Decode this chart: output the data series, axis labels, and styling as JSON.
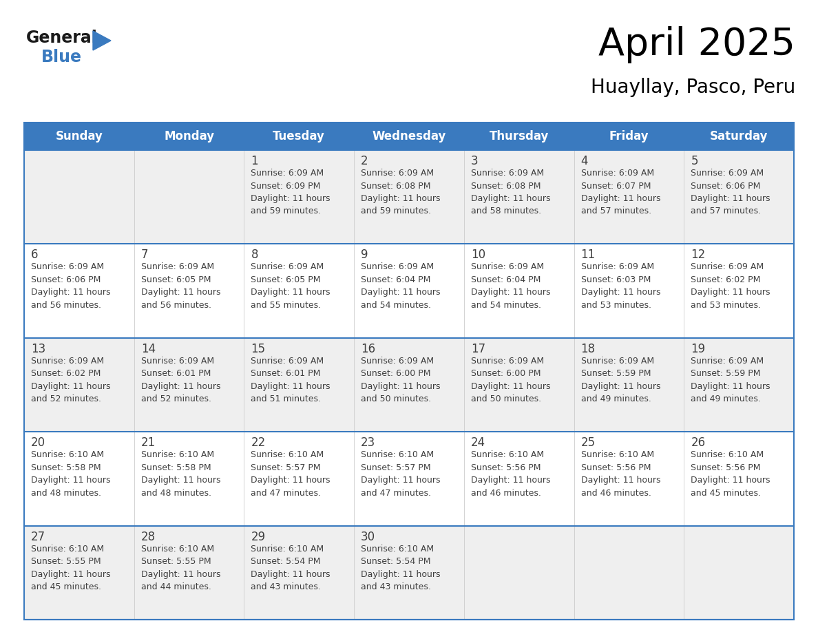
{
  "title": "April 2025",
  "subtitle": "Huayllay, Pasco, Peru",
  "header_bg": "#3a7abf",
  "header_text_color": "#ffffff",
  "cell_bg_odd": "#efefef",
  "cell_bg_even": "#ffffff",
  "border_color": "#3a7abf",
  "text_color": "#404040",
  "day_headers": [
    "Sunday",
    "Monday",
    "Tuesday",
    "Wednesday",
    "Thursday",
    "Friday",
    "Saturday"
  ],
  "weeks": [
    [
      {
        "day": "",
        "sunrise": "",
        "sunset": "",
        "daylight_1": "",
        "daylight_2": ""
      },
      {
        "day": "",
        "sunrise": "",
        "sunset": "",
        "daylight_1": "",
        "daylight_2": ""
      },
      {
        "day": "1",
        "sunrise": "Sunrise: 6:09 AM",
        "sunset": "Sunset: 6:09 PM",
        "daylight_1": "Daylight: 11 hours",
        "daylight_2": "and 59 minutes."
      },
      {
        "day": "2",
        "sunrise": "Sunrise: 6:09 AM",
        "sunset": "Sunset: 6:08 PM",
        "daylight_1": "Daylight: 11 hours",
        "daylight_2": "and 59 minutes."
      },
      {
        "day": "3",
        "sunrise": "Sunrise: 6:09 AM",
        "sunset": "Sunset: 6:08 PM",
        "daylight_1": "Daylight: 11 hours",
        "daylight_2": "and 58 minutes."
      },
      {
        "day": "4",
        "sunrise": "Sunrise: 6:09 AM",
        "sunset": "Sunset: 6:07 PM",
        "daylight_1": "Daylight: 11 hours",
        "daylight_2": "and 57 minutes."
      },
      {
        "day": "5",
        "sunrise": "Sunrise: 6:09 AM",
        "sunset": "Sunset: 6:06 PM",
        "daylight_1": "Daylight: 11 hours",
        "daylight_2": "and 57 minutes."
      }
    ],
    [
      {
        "day": "6",
        "sunrise": "Sunrise: 6:09 AM",
        "sunset": "Sunset: 6:06 PM",
        "daylight_1": "Daylight: 11 hours",
        "daylight_2": "and 56 minutes."
      },
      {
        "day": "7",
        "sunrise": "Sunrise: 6:09 AM",
        "sunset": "Sunset: 6:05 PM",
        "daylight_1": "Daylight: 11 hours",
        "daylight_2": "and 56 minutes."
      },
      {
        "day": "8",
        "sunrise": "Sunrise: 6:09 AM",
        "sunset": "Sunset: 6:05 PM",
        "daylight_1": "Daylight: 11 hours",
        "daylight_2": "and 55 minutes."
      },
      {
        "day": "9",
        "sunrise": "Sunrise: 6:09 AM",
        "sunset": "Sunset: 6:04 PM",
        "daylight_1": "Daylight: 11 hours",
        "daylight_2": "and 54 minutes."
      },
      {
        "day": "10",
        "sunrise": "Sunrise: 6:09 AM",
        "sunset": "Sunset: 6:04 PM",
        "daylight_1": "Daylight: 11 hours",
        "daylight_2": "and 54 minutes."
      },
      {
        "day": "11",
        "sunrise": "Sunrise: 6:09 AM",
        "sunset": "Sunset: 6:03 PM",
        "daylight_1": "Daylight: 11 hours",
        "daylight_2": "and 53 minutes."
      },
      {
        "day": "12",
        "sunrise": "Sunrise: 6:09 AM",
        "sunset": "Sunset: 6:02 PM",
        "daylight_1": "Daylight: 11 hours",
        "daylight_2": "and 53 minutes."
      }
    ],
    [
      {
        "day": "13",
        "sunrise": "Sunrise: 6:09 AM",
        "sunset": "Sunset: 6:02 PM",
        "daylight_1": "Daylight: 11 hours",
        "daylight_2": "and 52 minutes."
      },
      {
        "day": "14",
        "sunrise": "Sunrise: 6:09 AM",
        "sunset": "Sunset: 6:01 PM",
        "daylight_1": "Daylight: 11 hours",
        "daylight_2": "and 52 minutes."
      },
      {
        "day": "15",
        "sunrise": "Sunrise: 6:09 AM",
        "sunset": "Sunset: 6:01 PM",
        "daylight_1": "Daylight: 11 hours",
        "daylight_2": "and 51 minutes."
      },
      {
        "day": "16",
        "sunrise": "Sunrise: 6:09 AM",
        "sunset": "Sunset: 6:00 PM",
        "daylight_1": "Daylight: 11 hours",
        "daylight_2": "and 50 minutes."
      },
      {
        "day": "17",
        "sunrise": "Sunrise: 6:09 AM",
        "sunset": "Sunset: 6:00 PM",
        "daylight_1": "Daylight: 11 hours",
        "daylight_2": "and 50 minutes."
      },
      {
        "day": "18",
        "sunrise": "Sunrise: 6:09 AM",
        "sunset": "Sunset: 5:59 PM",
        "daylight_1": "Daylight: 11 hours",
        "daylight_2": "and 49 minutes."
      },
      {
        "day": "19",
        "sunrise": "Sunrise: 6:09 AM",
        "sunset": "Sunset: 5:59 PM",
        "daylight_1": "Daylight: 11 hours",
        "daylight_2": "and 49 minutes."
      }
    ],
    [
      {
        "day": "20",
        "sunrise": "Sunrise: 6:10 AM",
        "sunset": "Sunset: 5:58 PM",
        "daylight_1": "Daylight: 11 hours",
        "daylight_2": "and 48 minutes."
      },
      {
        "day": "21",
        "sunrise": "Sunrise: 6:10 AM",
        "sunset": "Sunset: 5:58 PM",
        "daylight_1": "Daylight: 11 hours",
        "daylight_2": "and 48 minutes."
      },
      {
        "day": "22",
        "sunrise": "Sunrise: 6:10 AM",
        "sunset": "Sunset: 5:57 PM",
        "daylight_1": "Daylight: 11 hours",
        "daylight_2": "and 47 minutes."
      },
      {
        "day": "23",
        "sunrise": "Sunrise: 6:10 AM",
        "sunset": "Sunset: 5:57 PM",
        "daylight_1": "Daylight: 11 hours",
        "daylight_2": "and 47 minutes."
      },
      {
        "day": "24",
        "sunrise": "Sunrise: 6:10 AM",
        "sunset": "Sunset: 5:56 PM",
        "daylight_1": "Daylight: 11 hours",
        "daylight_2": "and 46 minutes."
      },
      {
        "day": "25",
        "sunrise": "Sunrise: 6:10 AM",
        "sunset": "Sunset: 5:56 PM",
        "daylight_1": "Daylight: 11 hours",
        "daylight_2": "and 46 minutes."
      },
      {
        "day": "26",
        "sunrise": "Sunrise: 6:10 AM",
        "sunset": "Sunset: 5:56 PM",
        "daylight_1": "Daylight: 11 hours",
        "daylight_2": "and 45 minutes."
      }
    ],
    [
      {
        "day": "27",
        "sunrise": "Sunrise: 6:10 AM",
        "sunset": "Sunset: 5:55 PM",
        "daylight_1": "Daylight: 11 hours",
        "daylight_2": "and 45 minutes."
      },
      {
        "day": "28",
        "sunrise": "Sunrise: 6:10 AM",
        "sunset": "Sunset: 5:55 PM",
        "daylight_1": "Daylight: 11 hours",
        "daylight_2": "and 44 minutes."
      },
      {
        "day": "29",
        "sunrise": "Sunrise: 6:10 AM",
        "sunset": "Sunset: 5:54 PM",
        "daylight_1": "Daylight: 11 hours",
        "daylight_2": "and 43 minutes."
      },
      {
        "day": "30",
        "sunrise": "Sunrise: 6:10 AM",
        "sunset": "Sunset: 5:54 PM",
        "daylight_1": "Daylight: 11 hours",
        "daylight_2": "and 43 minutes."
      },
      {
        "day": "",
        "sunrise": "",
        "sunset": "",
        "daylight_1": "",
        "daylight_2": ""
      },
      {
        "day": "",
        "sunrise": "",
        "sunset": "",
        "daylight_1": "",
        "daylight_2": ""
      },
      {
        "day": "",
        "sunrise": "",
        "sunset": "",
        "daylight_1": "",
        "daylight_2": ""
      }
    ]
  ],
  "logo_general_color": "#1a1a1a",
  "logo_blue_color": "#3a7abf",
  "logo_triangle_color": "#3a7abf",
  "title_fontsize": 40,
  "subtitle_fontsize": 20,
  "header_fontsize": 12,
  "day_num_fontsize": 12,
  "cell_text_fontsize": 9
}
